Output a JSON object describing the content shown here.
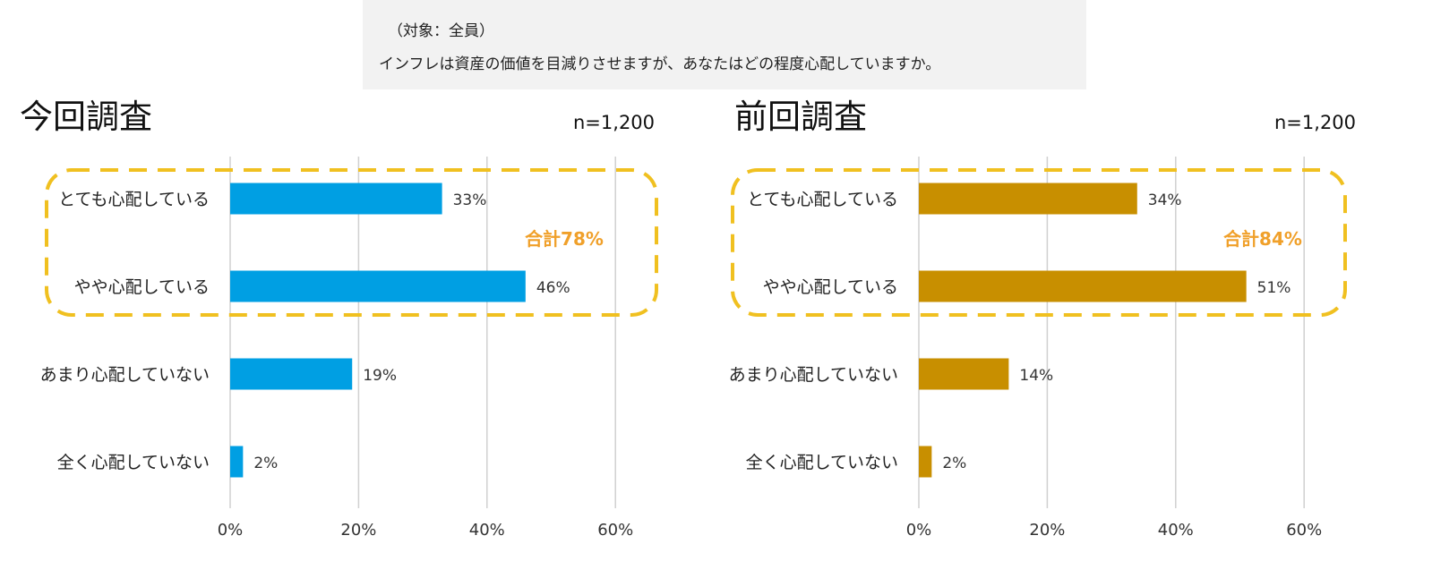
{
  "question": {
    "target": "（対象：全員）",
    "text": "インフレは資産の価値を目減りさせますが、あなたはどの程度心配していますか。"
  },
  "chart_data": [
    {
      "type": "bar",
      "orientation": "horizontal",
      "title": "今回調査",
      "n_label": "n=1,200",
      "categories": [
        "とても心配している",
        "やや心配している",
        "あまり心配していない",
        "全く心配していない"
      ],
      "values": [
        33,
        46,
        19,
        2
      ],
      "value_labels": [
        "33%",
        "46%",
        "19%",
        "2%"
      ],
      "xlim": [
        0,
        60
      ],
      "xticks": [
        "0%",
        "20%",
        "40%",
        "60%"
      ],
      "grid": true,
      "highlight": {
        "categories": [
          "とても心配している",
          "やや心配している"
        ],
        "label": "合計78%"
      },
      "color": "#009fe3"
    },
    {
      "type": "bar",
      "orientation": "horizontal",
      "title": "前回調査",
      "n_label": "n=1,200",
      "categories": [
        "とても心配している",
        "やや心配している",
        "あまり心配していない",
        "全く心配していない"
      ],
      "values": [
        34,
        51,
        14,
        2
      ],
      "value_labels": [
        "34%",
        "51%",
        "14%",
        "2%"
      ],
      "xlim": [
        0,
        60
      ],
      "xticks": [
        "0%",
        "20%",
        "40%",
        "60%"
      ],
      "grid": true,
      "highlight": {
        "categories": [
          "とても心配している",
          "やや心配している"
        ],
        "label": "合計84%"
      },
      "color": "#c88f00"
    }
  ],
  "colors": {
    "highlight_border": "#f0c020",
    "highlight_text": "#f0a02a",
    "grid": "#d0d0d0"
  }
}
